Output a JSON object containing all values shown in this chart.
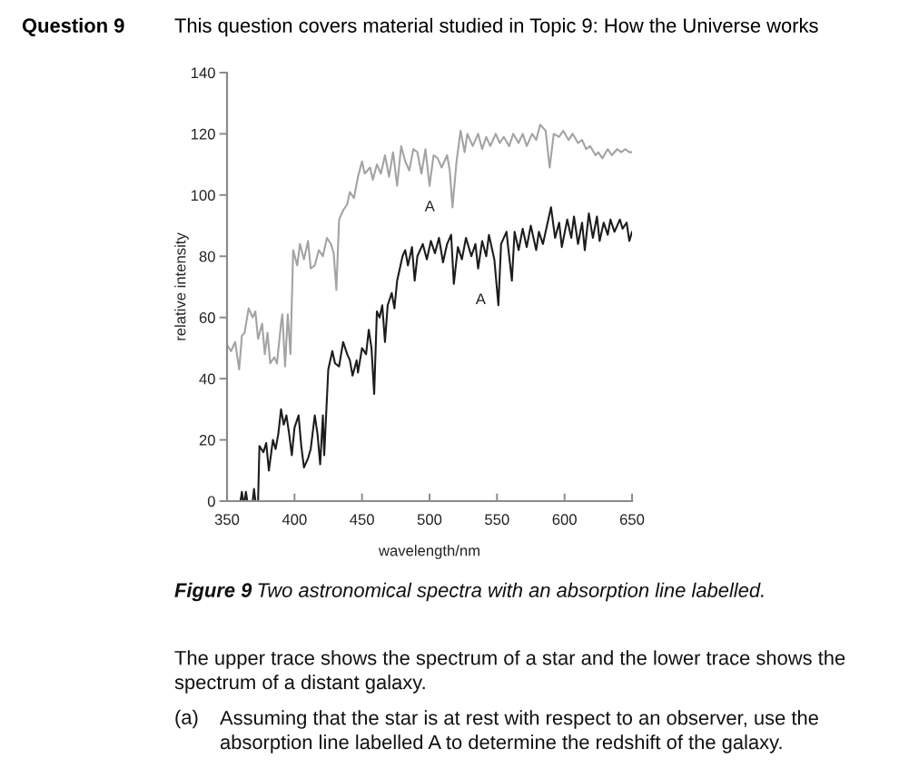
{
  "chart_data": {
    "type": "line",
    "title": "Question 9",
    "subtitle": "This question covers material studied in Topic 9: How the Universe works",
    "xlabel": "wavelength/nm",
    "ylabel": "relative intensity",
    "xlim": [
      350,
      650
    ],
    "xticks": [
      350,
      400,
      450,
      500,
      550,
      600,
      650
    ],
    "ylim": [
      0,
      140
    ],
    "yticks": [
      0,
      20,
      40,
      60,
      80,
      100,
      120,
      140
    ],
    "series": [
      {
        "color": "#a3a3a3",
        "x": [
          350,
          353,
          356,
          359,
          361,
          363,
          366,
          369,
          371,
          373,
          376,
          378,
          380,
          382,
          385,
          387,
          390,
          391,
          393,
          395,
          397,
          399,
          402,
          404,
          407,
          410,
          412,
          415,
          418,
          421,
          424,
          427,
          429,
          431,
          433,
          436,
          439,
          441,
          444,
          447,
          450,
          452,
          456,
          458,
          461,
          464,
          467,
          470,
          473,
          476,
          479,
          482,
          485,
          488,
          491,
          494,
          497,
          500,
          503,
          506,
          509,
          513,
          515,
          517,
          520,
          523,
          526,
          528,
          532,
          536,
          539,
          542,
          545,
          549,
          552,
          555,
          559,
          562,
          566,
          569,
          572,
          576,
          579,
          582,
          586,
          589,
          592,
          596,
          599,
          603,
          606,
          610,
          613,
          616,
          619,
          623,
          625,
          628,
          632,
          635,
          639,
          642,
          645,
          648,
          650
        ],
        "values": [
          51,
          49,
          52,
          43,
          54,
          55,
          63,
          60,
          62,
          53,
          58,
          48,
          55,
          45,
          47,
          45,
          58,
          61,
          44,
          61,
          48,
          82,
          77,
          84,
          79,
          85,
          76,
          77,
          82,
          80,
          86,
          84,
          81,
          69,
          92,
          95,
          97,
          101,
          99,
          106,
          111,
          107,
          109,
          105,
          110,
          107,
          113,
          106,
          114,
          103,
          116,
          111,
          108,
          115,
          114,
          107,
          115,
          103,
          113,
          112,
          109,
          113,
          108,
          96,
          111,
          121,
          114,
          120,
          116,
          120,
          115,
          119,
          116,
          120,
          117,
          119,
          116,
          120,
          117,
          120,
          116,
          120,
          118,
          123,
          121,
          109,
          120,
          119,
          121,
          118,
          120,
          117,
          118,
          115,
          116,
          113,
          114,
          112,
          115,
          113,
          115,
          114,
          115,
          114,
          114
        ]
      },
      {
        "color": "#1c1c1c",
        "x": [
          355,
          360,
          361,
          362,
          363,
          364,
          365,
          369,
          370,
          371,
          373,
          374,
          377,
          379,
          381,
          384,
          386,
          388,
          390,
          392,
          394,
          396,
          398,
          400,
          403,
          405,
          407,
          410,
          412,
          415,
          417,
          419,
          421,
          422,
          425,
          428,
          430,
          433,
          436,
          439,
          441,
          443,
          446,
          447,
          450,
          453,
          455,
          457,
          459,
          461,
          463,
          465,
          467,
          469,
          472,
          474,
          476,
          478,
          480,
          482,
          484,
          487,
          489,
          491,
          495,
          498,
          501,
          504,
          507,
          510,
          513,
          516,
          518,
          521,
          524,
          527,
          531,
          534,
          536,
          539,
          542,
          544,
          548,
          551,
          553,
          557,
          559,
          561,
          563,
          566,
          569,
          572,
          575,
          579,
          581,
          584,
          587,
          590,
          593,
          596,
          598,
          602,
          605,
          607,
          610,
          613,
          615,
          618,
          621,
          624,
          626,
          629,
          632,
          634,
          637,
          641,
          643,
          646,
          648,
          650
        ],
        "values": [
          0,
          0,
          3,
          0,
          0,
          3,
          0,
          0,
          4,
          0,
          0,
          18,
          16,
          19,
          10,
          20,
          17,
          22,
          30,
          25,
          28,
          22,
          15,
          24,
          28,
          18,
          11,
          14,
          17,
          28,
          22,
          12,
          28,
          15,
          43,
          49,
          45,
          44,
          52,
          48,
          46,
          41,
          46,
          42,
          50,
          48,
          56,
          50,
          35,
          62,
          60,
          64,
          52,
          64,
          68,
          63,
          72,
          76,
          80,
          82,
          77,
          83,
          72,
          80,
          84,
          79,
          85,
          81,
          86,
          78,
          84,
          87,
          71,
          83,
          79,
          86,
          80,
          84,
          76,
          85,
          80,
          87,
          79,
          64,
          84,
          88,
          80,
          72,
          88,
          82,
          89,
          83,
          90,
          82,
          88,
          84,
          90,
          96,
          86,
          91,
          83,
          92,
          86,
          93,
          84,
          91,
          82,
          94,
          86,
          93,
          85,
          91,
          87,
          92,
          88,
          92,
          89,
          91,
          85,
          88
        ]
      }
    ],
    "annotations": [
      {
        "text": "A",
        "x": 517,
        "y": 96
      },
      {
        "text": "A",
        "x": 551,
        "y": 64
      },
      "Figure 9",
      "Two astronomical spectra with an absorption line labelled.",
      "The upper trace shows the spectrum of a star and the lower trace shows the\nspectrum of a distant galaxy.",
      "(a)",
      "Assuming that the star is at rest with respect to an observer, use the\nabsorption line labelled A to determine the redshift of the galaxy."
    ]
  }
}
